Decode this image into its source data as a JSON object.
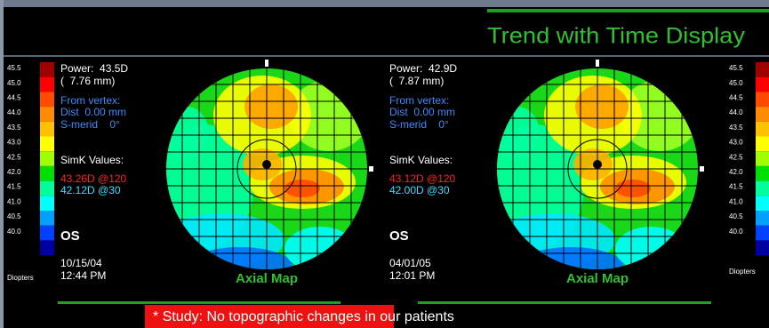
{
  "header": {
    "title": "Trend with Time Display"
  },
  "scales": [
    {
      "labels": [
        "45.5",
        "45.0",
        "44.5",
        "44.0",
        "43.5",
        "43.0",
        "42.5",
        "42.0",
        "41.5",
        "41.0",
        "40.5",
        "40.0"
      ],
      "unit": "Diopters"
    },
    {
      "labels": [
        "45.5",
        "45.0",
        "44.5",
        "44.0",
        "43.5",
        "43.0",
        "42.5",
        "42.0",
        "41.5",
        "41.0",
        "40.5",
        "40.0"
      ],
      "unit": "Diopters"
    }
  ],
  "panels": [
    {
      "power": "Power:  43.5D",
      "radius": "(  7.76 mm)",
      "from_vertex": "From vertex:",
      "dist": "Dist  0.00 mm",
      "s_merid": "S-merid    0°",
      "simk_title": "SimK Values:",
      "simk_1": "43.26D @120",
      "simk_2": "42.12D @30",
      "eye": "OS",
      "date": "10/15/04",
      "time": "12:44 PM",
      "map_label": "Axial Map"
    },
    {
      "power": "Power:  42.9D",
      "radius": "(  7.87 mm)",
      "from_vertex": "From vertex:",
      "dist": "Dist  0.00 mm",
      "s_merid": "S-merid    0°",
      "simk_title": "SimK Values:",
      "simk_1": "43.12D @120",
      "simk_2": "42.00D @30",
      "eye": "OS",
      "date": "04/01/05",
      "time": "12:01 PM",
      "map_label": "Axial Map"
    }
  ],
  "footer": {
    "note": "* Study: No topographic changes in our patients"
  }
}
